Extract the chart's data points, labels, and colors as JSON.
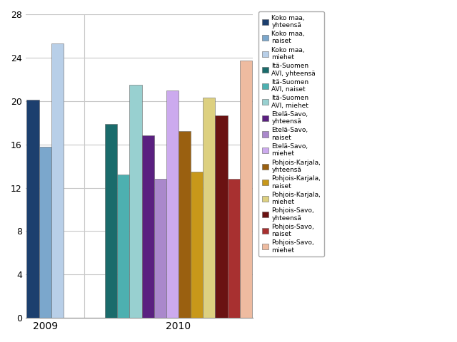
{
  "year_2009": {
    "values": [
      20.1,
      15.8,
      25.3
    ],
    "colors": [
      "#1c3f6e",
      "#7ba7cc",
      "#b8cfe8"
    ]
  },
  "year_2010": {
    "values": [
      17.9,
      13.2,
      21.5,
      16.8,
      12.8,
      21.0,
      17.2,
      13.5,
      20.3,
      18.7,
      12.8,
      23.7
    ],
    "colors": [
      "#1a6b6b",
      "#4db0b0",
      "#98d0d0",
      "#5a2080",
      "#aa88cc",
      "#ccaaee",
      "#9a6010",
      "#c8981a",
      "#ddd080",
      "#6a1212",
      "#a83030",
      "#eebba0"
    ]
  },
  "ylim": [
    0,
    28
  ],
  "yticks": [
    0,
    4,
    8,
    12,
    16,
    20,
    24,
    28
  ],
  "xlabel_2009": "2009",
  "xlabel_2010": "2010",
  "legend_labels": [
    "Koko maa,\nyhteensä",
    "Koko maa,\nnaiset",
    "Koko maa,\nmiehet",
    "Itä-Suomen\nAVI, yhteensä",
    "Itä-Suomen\nAVI, naiset",
    "Itä-Suomen\nAVI, miehet",
    "Etelä-Savo,\nyhteensä",
    "Etelä-Savo,\nnaiset",
    "Etelä-Savo,\nmiehet",
    "Pohjois-Karjala,\nyhteensä",
    "Pohjois-Karjala,\nnaiset",
    "Pohjois-Karjala,\nmiehet",
    "Pohjois-Savo,\nyhteensä",
    "Pohjois-Savo,\nnaiset",
    "Pohjois-Savo,\nmiehet"
  ],
  "legend_colors": [
    "#1c3f6e",
    "#7ba7cc",
    "#b8cfe8",
    "#1a6b6b",
    "#4db0b0",
    "#98d0d0",
    "#5a2080",
    "#aa88cc",
    "#ccaaee",
    "#9a6010",
    "#c8981a",
    "#ddd080",
    "#6a1212",
    "#a83030",
    "#eebba0"
  ],
  "bar_width": 0.55,
  "background_color": "#ffffff",
  "grid_color": "#c8c8c8"
}
